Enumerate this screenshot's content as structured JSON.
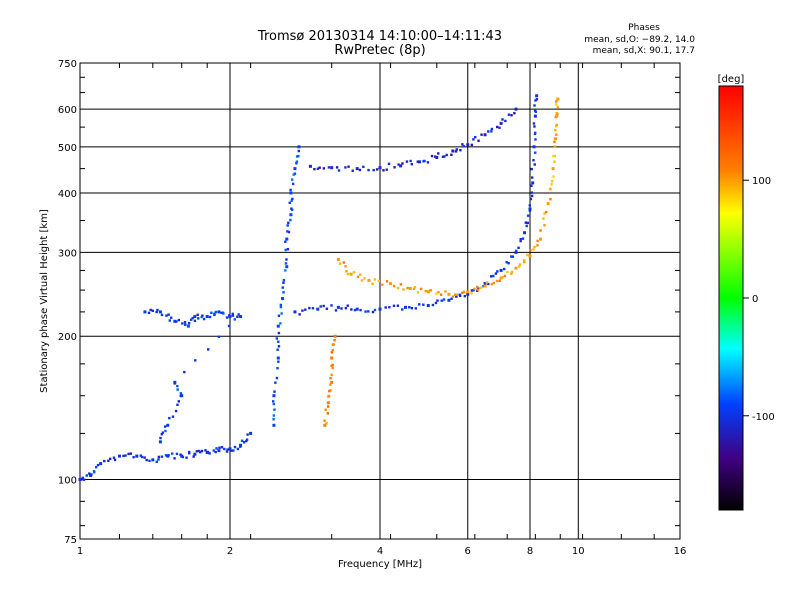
{
  "chart_data": {
    "type": "scatter",
    "title": "Tromsø 20130314 14:10:00–14:11:43",
    "subtitle": "RwPretec (8p)",
    "xlabel": "Frequency [MHz]",
    "ylabel": "Stationary phase Virtual Height [km]",
    "x_scale": "log",
    "y_scale": "log",
    "xlim": [
      1,
      16
    ],
    "ylim": [
      75,
      750
    ],
    "x_ticks": [
      1,
      2,
      4,
      6,
      8,
      10,
      16
    ],
    "y_ticks": [
      75,
      100,
      200,
      300,
      400,
      500,
      600,
      750
    ],
    "grid": true,
    "phase_box": {
      "heading": "Phases",
      "line_o": "mean, sd,O: −89.2, 14.0",
      "line_x": "mean, sd,X:  90.1, 17.7"
    },
    "colorbar": {
      "label": "[deg]",
      "range": [
        -180,
        180
      ],
      "ticks": [
        100,
        0,
        -100
      ]
    },
    "series": [
      {
        "description": "E-region low-height trace",
        "phase_deg": -100,
        "points": [
          [
            1.0,
            100
          ],
          [
            1.05,
            102
          ],
          [
            1.1,
            108
          ],
          [
            1.2,
            112
          ],
          [
            1.3,
            112
          ],
          [
            1.4,
            110
          ],
          [
            1.5,
            112
          ],
          [
            1.6,
            112
          ],
          [
            1.7,
            113
          ],
          [
            1.8,
            114
          ],
          [
            1.9,
            115
          ],
          [
            2.0,
            116
          ],
          [
            2.1,
            118
          ],
          [
            2.2,
            125
          ]
        ]
      },
      {
        "description": "Sporadic / intermediate cluster",
        "phase_deg": -95,
        "points": [
          [
            1.35,
            225
          ],
          [
            1.45,
            225
          ],
          [
            1.55,
            215
          ],
          [
            1.65,
            210
          ],
          [
            1.7,
            220
          ],
          [
            1.8,
            220
          ],
          [
            1.9,
            225
          ],
          [
            2.0,
            220
          ],
          [
            2.1,
            220
          ],
          [
            1.55,
            160
          ],
          [
            1.6,
            150
          ],
          [
            1.5,
            130
          ],
          [
            1.45,
            120
          ]
        ]
      },
      {
        "description": "O-mode F1 cusp vertical",
        "phase_deg": -90,
        "points": [
          [
            2.45,
            130
          ],
          [
            2.45,
            150
          ],
          [
            2.5,
            180
          ],
          [
            2.5,
            210
          ],
          [
            2.55,
            240
          ],
          [
            2.6,
            280
          ],
          [
            2.6,
            320
          ],
          [
            2.65,
            360
          ],
          [
            2.65,
            400
          ],
          [
            2.7,
            450
          ],
          [
            2.75,
            500
          ]
        ]
      },
      {
        "description": "O-mode F1 trace",
        "phase_deg": -100,
        "points": [
          [
            2.7,
            225
          ],
          [
            3.0,
            228
          ],
          [
            3.3,
            230
          ],
          [
            3.6,
            228
          ],
          [
            4.0,
            228
          ],
          [
            4.5,
            230
          ],
          [
            5.0,
            232
          ],
          [
            5.5,
            238
          ],
          [
            6.0,
            245
          ],
          [
            6.5,
            258
          ],
          [
            7.0,
            275
          ],
          [
            7.5,
            300
          ],
          [
            7.8,
            330
          ],
          [
            8.0,
            370
          ],
          [
            8.1,
            420
          ],
          [
            8.15,
            500
          ],
          [
            8.2,
            580
          ],
          [
            8.25,
            640
          ]
        ]
      },
      {
        "description": "Upper O-mode F2 echo",
        "phase_deg": -110,
        "points": [
          [
            2.9,
            455
          ],
          [
            3.2,
            452
          ],
          [
            3.6,
            450
          ],
          [
            4.0,
            452
          ],
          [
            4.4,
            456
          ],
          [
            4.8,
            465
          ],
          [
            5.2,
            475
          ],
          [
            5.6,
            490
          ],
          [
            6.0,
            505
          ],
          [
            6.5,
            530
          ],
          [
            7.0,
            560
          ],
          [
            7.5,
            600
          ]
        ]
      },
      {
        "description": "X-mode F trace",
        "phase_deg": 100,
        "points": [
          [
            3.3,
            290
          ],
          [
            3.5,
            270
          ],
          [
            3.8,
            262
          ],
          [
            4.2,
            258
          ],
          [
            4.6,
            252
          ],
          [
            5.0,
            248
          ],
          [
            5.5,
            245
          ],
          [
            6.0,
            248
          ],
          [
            6.5,
            255
          ],
          [
            7.0,
            265
          ],
          [
            7.5,
            278
          ],
          [
            8.0,
            295
          ],
          [
            8.4,
            320
          ],
          [
            8.7,
            380
          ],
          [
            8.9,
            450
          ],
          [
            9.0,
            520
          ],
          [
            9.05,
            580
          ],
          [
            9.1,
            630
          ]
        ]
      },
      {
        "description": "X-mode lower branch",
        "phase_deg": 110,
        "points": [
          [
            3.1,
            130
          ],
          [
            3.15,
            145
          ],
          [
            3.2,
            160
          ],
          [
            3.2,
            180
          ],
          [
            3.25,
            200
          ]
        ]
      }
    ]
  }
}
